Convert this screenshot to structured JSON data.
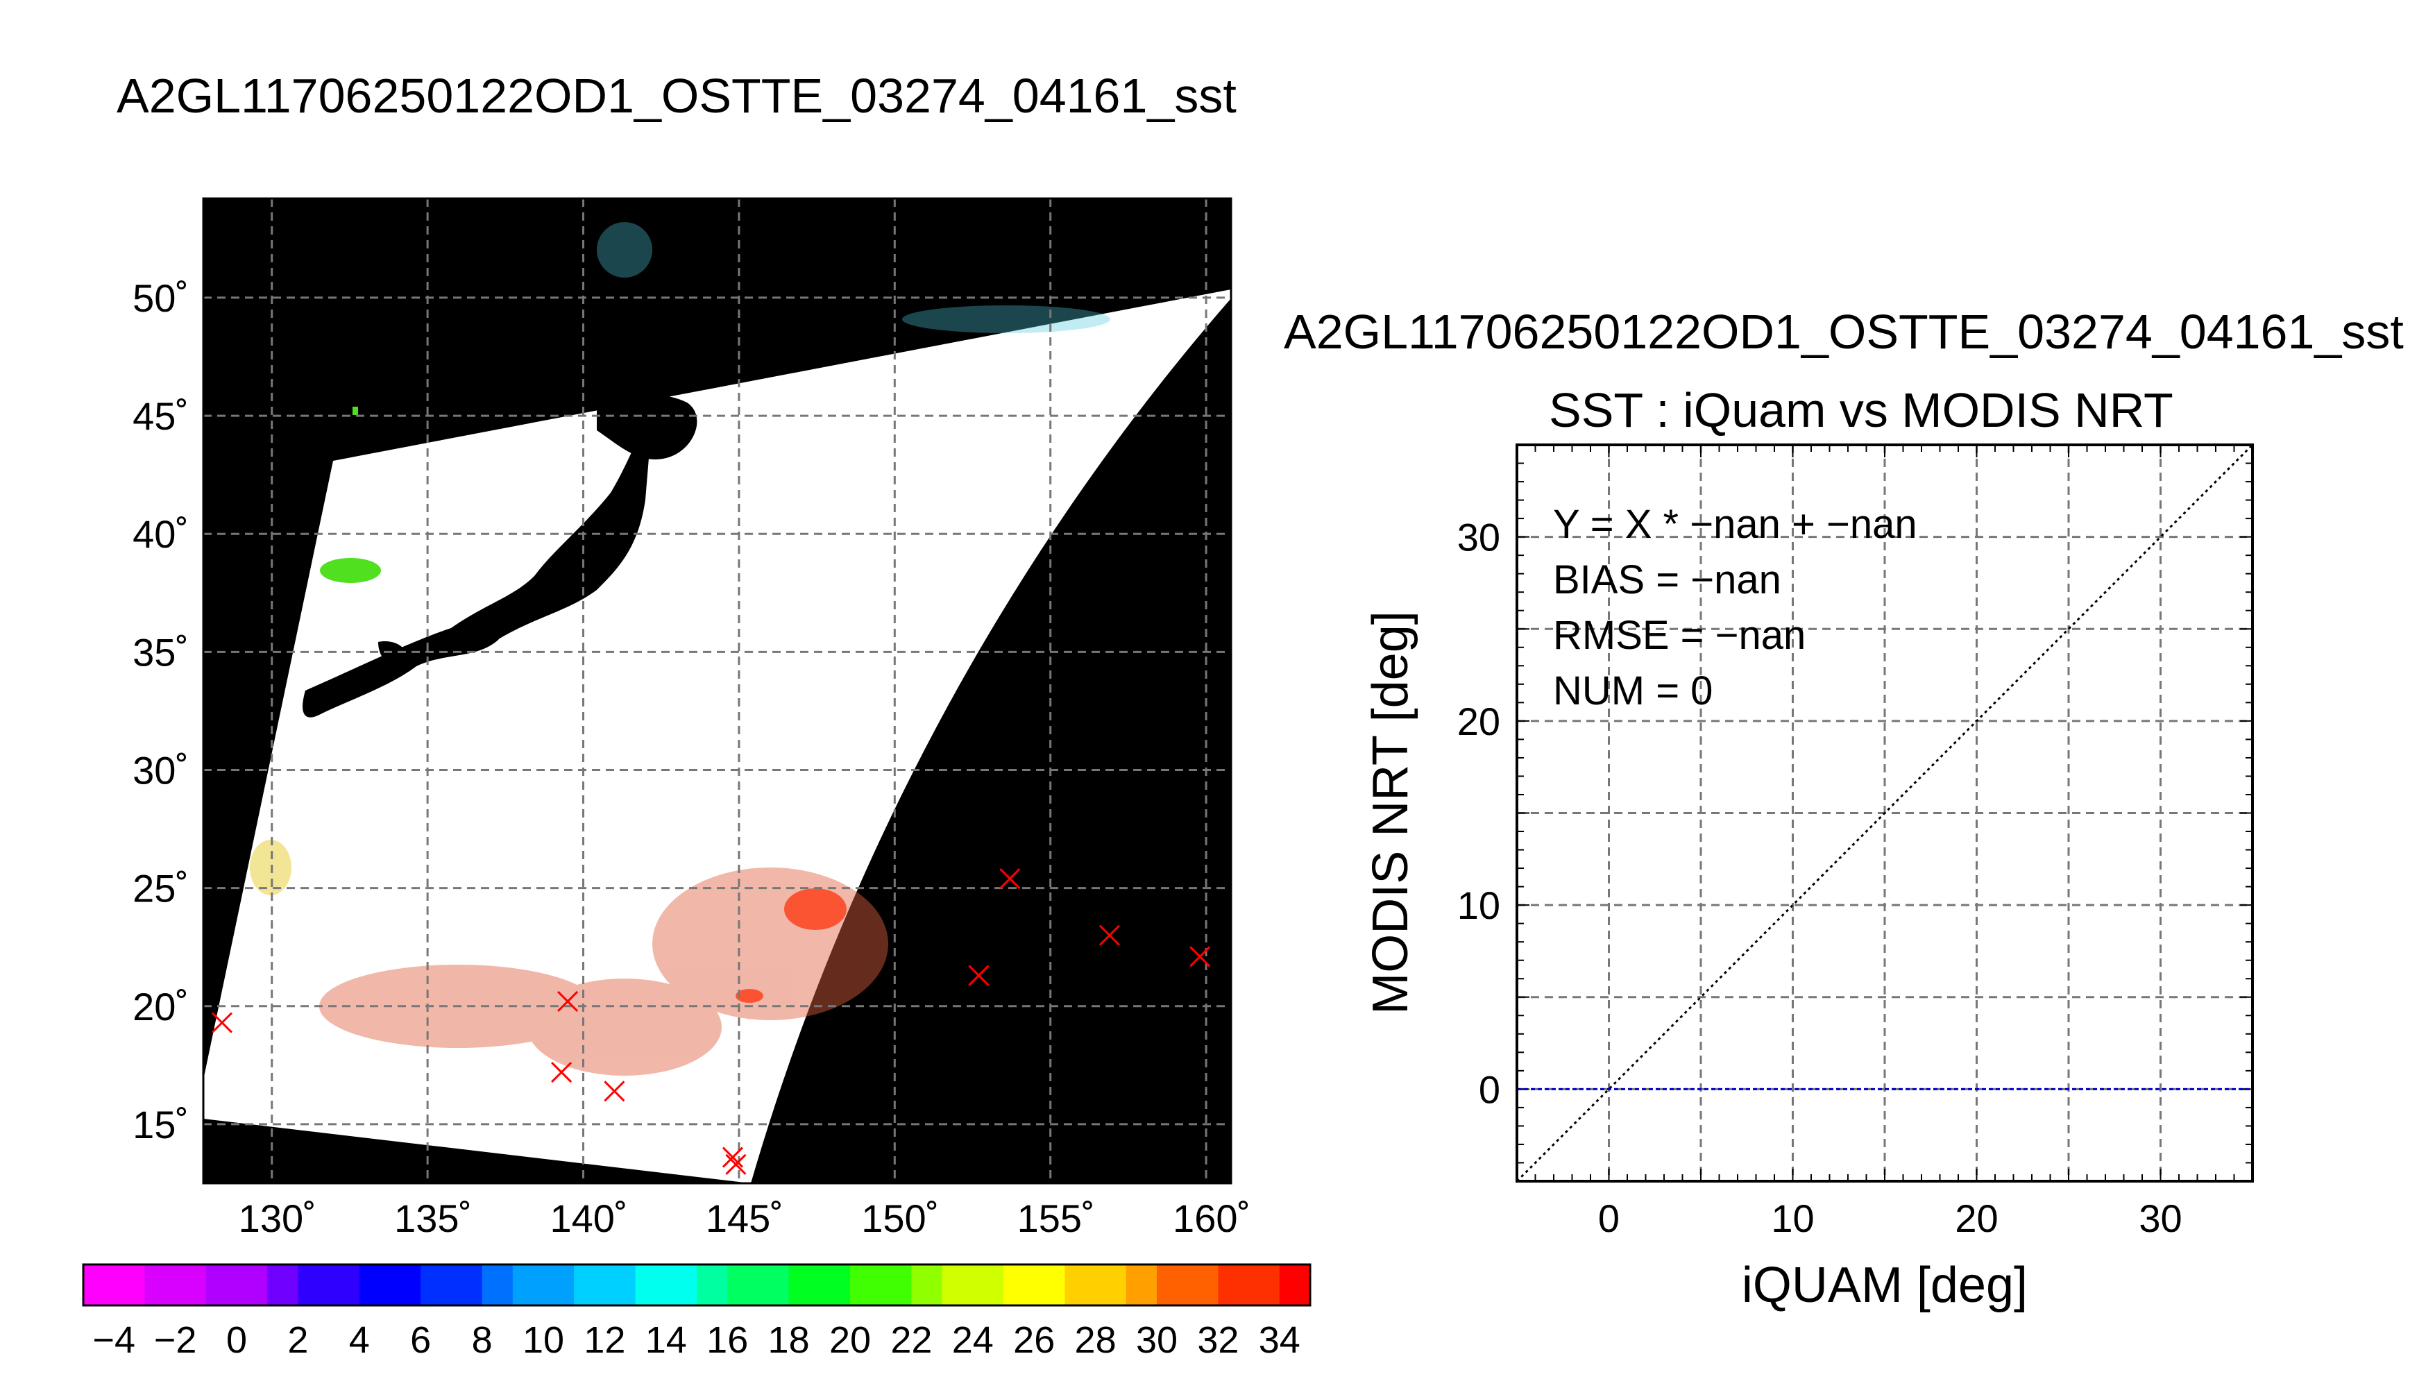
{
  "header": {
    "title": "A2GL11706250122OD1_OSTTE_03274_04161_sst"
  },
  "colors": {
    "land": "#000000",
    "swath": "#ffffff",
    "marker": "#ff0000",
    "zero_line": "#0000cc"
  },
  "chart_data": [
    {
      "type": "map",
      "name": "sst-swath-map",
      "x_ticks": [
        "130˚",
        "135˚",
        "140˚",
        "145˚",
        "150˚",
        "155˚",
        "160˚"
      ],
      "y_ticks": [
        "50˚",
        "45˚",
        "40˚",
        "35˚",
        "30˚",
        "25˚",
        "20˚",
        "15˚"
      ],
      "xlim": [
        127.8,
        160.8
      ],
      "ylim": [
        12.5,
        54.2
      ],
      "grid": true,
      "markers": [
        {
          "lon": 128.4,
          "lat": 19.3
        },
        {
          "lon": 139.5,
          "lat": 20.2
        },
        {
          "lon": 139.3,
          "lat": 17.2
        },
        {
          "lon": 141.0,
          "lat": 16.4
        },
        {
          "lon": 144.8,
          "lat": 13.6
        },
        {
          "lon": 144.9,
          "lat": 13.3
        },
        {
          "lon": 152.7,
          "lat": 21.3
        },
        {
          "lon": 153.7,
          "lat": 25.4
        },
        {
          "lon": 156.9,
          "lat": 23.0
        },
        {
          "lon": 159.8,
          "lat": 22.1
        }
      ]
    },
    {
      "type": "colorbar",
      "name": "sst-colorbar",
      "range": [
        -5,
        35
      ],
      "tick_labels": [
        "−4",
        "−2",
        "0",
        "2",
        "4",
        "6",
        "8",
        "10",
        "12",
        "14",
        "16",
        "18",
        "20",
        "22",
        "24",
        "26",
        "28",
        "30",
        "32",
        "34"
      ],
      "colors": [
        "#ff00ff",
        "#d800ff",
        "#b000ff",
        "#7000ff",
        "#3000ff",
        "#0000ff",
        "#0030ff",
        "#0070ff",
        "#00a0ff",
        "#00d0ff",
        "#00ffee",
        "#00ffa0",
        "#00ff60",
        "#00ff20",
        "#40ff00",
        "#90ff00",
        "#d0ff00",
        "#ffff00",
        "#ffd000",
        "#ffa000",
        "#ff6000",
        "#ff3000",
        "#ff0000"
      ]
    },
    {
      "type": "scatter",
      "name": "iquam-vs-modis-scatter",
      "title_top": "A2GL11706250122OD1_OSTTE_03274_04161_sst",
      "title": "SST : iQuam vs MODIS NRT",
      "xlabel": "iQUAM [deg]",
      "ylabel": "MODIS NRT [deg]",
      "xlim": [
        -5,
        35
      ],
      "ylim": [
        -5,
        35
      ],
      "x_ticks": [
        "0",
        "10",
        "20",
        "30"
      ],
      "y_ticks": [
        "0",
        "10",
        "20",
        "30"
      ],
      "grid": true,
      "points": [],
      "stats": [
        "Y = X * −nan + −nan",
        "BIAS = −nan",
        "RMSE = −nan",
        "NUM = 0"
      ],
      "reference_lines": [
        {
          "kind": "identity",
          "x": [
            -5,
            35
          ],
          "y": [
            -5,
            35
          ]
        },
        {
          "kind": "zero",
          "x": [
            -5,
            35
          ],
          "y": [
            0,
            0
          ]
        }
      ]
    }
  ]
}
